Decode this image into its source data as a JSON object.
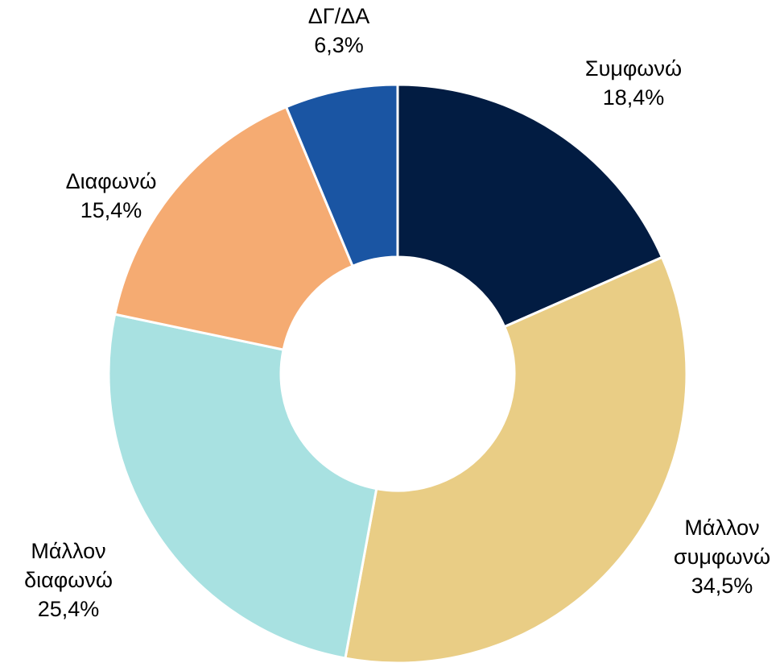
{
  "chart_data": {
    "type": "donut",
    "categories": [
      "Συμφωνώ",
      "Μάλλον συμφωνώ",
      "Μάλλον διαφωνώ",
      "Διαφωνώ",
      "ΔΓ/ΔΑ"
    ],
    "values": [
      18.4,
      34.5,
      25.4,
      15.4,
      6.3
    ],
    "value_labels": [
      "18,4%",
      "34,5%",
      "25,4%",
      "15,4%",
      "6,3%"
    ],
    "colors": [
      "#021c42",
      "#e9cd85",
      "#a8e1e1",
      "#f5ab72",
      "#1a55a3"
    ]
  }
}
